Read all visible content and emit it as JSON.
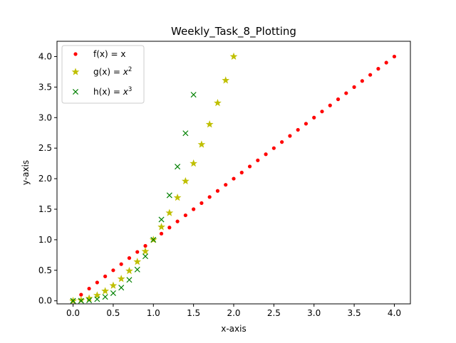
{
  "chart_data": {
    "type": "scatter",
    "title": "Weekly_Task_8_Plotting",
    "xlabel": "x-axis",
    "ylabel": "y-axis",
    "xlim": [
      -0.2,
      4.2
    ],
    "ylim": [
      -0.05,
      4.25
    ],
    "xticks": [
      "0.0",
      "0.5",
      "1.0",
      "1.5",
      "2.0",
      "2.5",
      "3.0",
      "3.5",
      "4.0"
    ],
    "yticks": [
      "0.0",
      "0.5",
      "1.0",
      "1.5",
      "2.0",
      "2.5",
      "3.0",
      "3.5",
      "4.0"
    ],
    "grid": false,
    "legend_position": "top-left",
    "x": [
      0.0,
      0.1,
      0.2,
      0.3,
      0.4,
      0.5,
      0.6,
      0.7,
      0.8,
      0.9,
      1.0,
      1.1,
      1.2,
      1.3,
      1.4,
      1.5,
      1.6,
      1.7,
      1.8,
      1.9,
      2.0,
      2.1,
      2.2,
      2.3,
      2.4,
      2.5,
      2.6,
      2.7,
      2.8,
      2.9,
      3.0,
      3.1,
      3.2,
      3.3,
      3.4,
      3.5,
      3.6,
      3.7,
      3.8,
      3.9,
      4.0
    ],
    "series": [
      {
        "name": "f(x) = x",
        "legend_base": "f(x) = x",
        "legend_sup": "",
        "marker": "dot",
        "color": "#ff0000",
        "values": [
          0.0,
          0.1,
          0.2,
          0.3,
          0.4,
          0.5,
          0.6,
          0.7,
          0.8,
          0.9,
          1.0,
          1.1,
          1.2,
          1.3,
          1.4,
          1.5,
          1.6,
          1.7,
          1.8,
          1.9,
          2.0,
          2.1,
          2.2,
          2.3,
          2.4,
          2.5,
          2.6,
          2.7,
          2.8,
          2.9,
          3.0,
          3.1,
          3.2,
          3.3,
          3.4,
          3.5,
          3.6,
          3.7,
          3.8,
          3.9,
          4.0
        ]
      },
      {
        "name": "g(x) = x^2",
        "legend_base": "g(x) = ",
        "legend_sup": "2",
        "marker": "star",
        "color": "#bfbf00",
        "values": [
          0.0,
          0.01,
          0.04,
          0.09,
          0.16,
          0.25,
          0.36,
          0.49,
          0.64,
          0.81,
          1.0,
          1.21,
          1.44,
          1.69,
          1.96,
          2.25,
          2.56,
          2.89,
          3.24,
          3.61,
          4.0
        ]
      },
      {
        "name": "h(x) = x^3",
        "legend_base": "h(x) = ",
        "legend_sup": "3",
        "marker": "x",
        "color": "#008000",
        "values": [
          0.0,
          0.001,
          0.008,
          0.027,
          0.064,
          0.125,
          0.216,
          0.343,
          0.512,
          0.729,
          1.0,
          1.331,
          1.728,
          2.197,
          2.744,
          3.375
        ]
      }
    ]
  }
}
